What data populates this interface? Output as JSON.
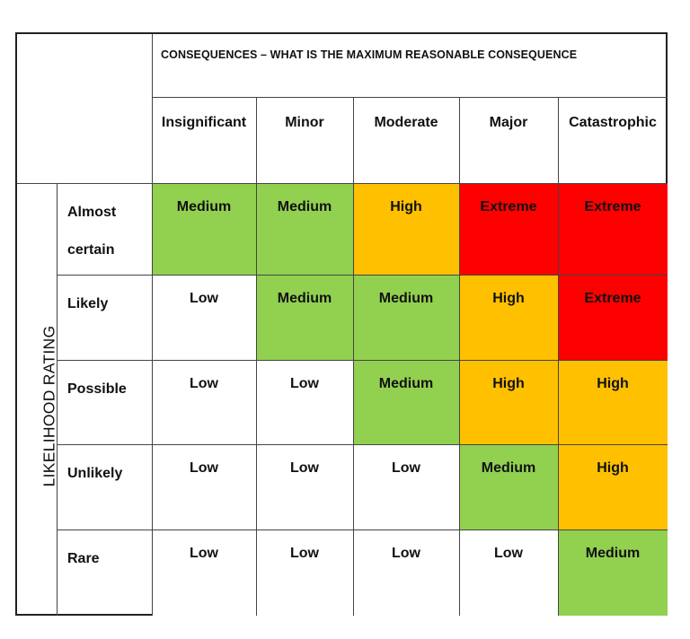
{
  "header": {
    "title": "CONSEQUENCES – WHAT IS THE MAXIMUM REASONABLE CONSEQUENCE",
    "columns": [
      "Insignificant",
      "Minor",
      "Moderate",
      "Major",
      "Catastrophic"
    ]
  },
  "side_label": "LIKELIHOOD RATING",
  "rows": [
    {
      "label_line1": "Almost",
      "label_line2": "certain",
      "cells": [
        "Medium",
        "Medium",
        "High",
        "Extreme",
        "Extreme"
      ]
    },
    {
      "label_line1": "Likely",
      "label_line2": "",
      "cells": [
        "Low",
        "Medium",
        "Medium",
        "High",
        "Extreme"
      ]
    },
    {
      "label_line1": "Possible",
      "label_line2": "",
      "cells": [
        "Low",
        "Low",
        "Medium",
        "High",
        "High"
      ]
    },
    {
      "label_line1": "Unlikely",
      "label_line2": "",
      "cells": [
        "Low",
        "Low",
        "Low",
        "Medium",
        "High"
      ]
    },
    {
      "label_line1": "Rare",
      "label_line2": "",
      "cells": [
        "Low",
        "Low",
        "Low",
        "Low",
        "Medium"
      ]
    }
  ],
  "colors": {
    "Low": "#ffffff",
    "Medium": "#92d050",
    "High": "#ffc000",
    "Extreme": "#ff0000"
  }
}
